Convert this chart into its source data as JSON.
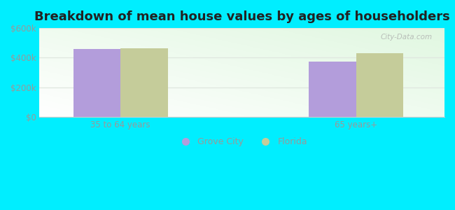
{
  "title": "Breakdown of mean house values by ages of householders",
  "categories": [
    "35 to 64 years",
    "65 years+"
  ],
  "grove_city_values": [
    460000,
    375000
  ],
  "florida_values": [
    465000,
    430000
  ],
  "bar_color_grove_city": "#b39ddb",
  "bar_color_florida": "#c5cc9a",
  "background_outer": "#00eeff",
  "background_inner_top": "#f5fffa",
  "background_inner_bottom": "#d4f5d4",
  "ylim": [
    0,
    600000
  ],
  "yticks": [
    0,
    200000,
    400000,
    600000
  ],
  "ytick_labels": [
    "$0",
    "$200k",
    "$400k",
    "$600k"
  ],
  "legend_labels": [
    "Grove City",
    "Florida"
  ],
  "bar_width": 0.32,
  "group_positions": [
    1.0,
    2.6
  ],
  "xlim": [
    0.45,
    3.2
  ],
  "watermark": "City-Data.com",
  "tick_color": "#999999",
  "grid_color": "#e0e8e0",
  "title_fontsize": 13
}
